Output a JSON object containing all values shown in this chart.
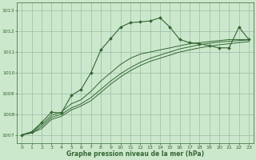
{
  "bg_color": "#cce8cc",
  "grid_color": "#99bbaa",
  "line_color": "#336633",
  "title": "Graphe pression niveau de la mer (hPa)",
  "xlim": [
    -0.5,
    23.5
  ],
  "ylim": [
    1006.6,
    1013.4
  ],
  "yticks": [
    1007,
    1008,
    1009,
    1010,
    1011,
    1012,
    1013
  ],
  "xticks": [
    0,
    1,
    2,
    3,
    4,
    5,
    6,
    7,
    8,
    9,
    10,
    11,
    12,
    13,
    14,
    15,
    16,
    17,
    18,
    19,
    20,
    21,
    22,
    23
  ],
  "line1_x": [
    0,
    1,
    2,
    3,
    4,
    5,
    6,
    7,
    8,
    9,
    10,
    11,
    12,
    13,
    14,
    15,
    16,
    17,
    18,
    19,
    20,
    21,
    22,
    23
  ],
  "line1_y": [
    1007.0,
    1007.15,
    1007.6,
    1008.1,
    1008.05,
    1008.9,
    1009.2,
    1010.0,
    1011.1,
    1011.65,
    1012.2,
    1012.42,
    1012.45,
    1012.5,
    1012.65,
    1012.2,
    1011.6,
    1011.45,
    1011.4,
    1011.3,
    1011.2,
    1011.2,
    1012.2,
    1011.6
  ],
  "line2_x": [
    0,
    1,
    2,
    3,
    4,
    5,
    6,
    7,
    8,
    9,
    10,
    11,
    12,
    13,
    14,
    15,
    16,
    17,
    18,
    19,
    20,
    21,
    22,
    23
  ],
  "line2_y": [
    1007.0,
    1007.15,
    1007.5,
    1007.95,
    1008.1,
    1008.5,
    1008.7,
    1009.1,
    1009.6,
    1010.0,
    1010.4,
    1010.7,
    1010.9,
    1011.0,
    1011.1,
    1011.2,
    1011.3,
    1011.4,
    1011.45,
    1011.5,
    1011.55,
    1011.6,
    1011.6,
    1011.6
  ],
  "line3_x": [
    0,
    1,
    2,
    3,
    4,
    5,
    6,
    7,
    8,
    9,
    10,
    11,
    12,
    13,
    14,
    15,
    16,
    17,
    18,
    19,
    20,
    21,
    22,
    23
  ],
  "line3_y": [
    1007.0,
    1007.1,
    1007.4,
    1007.85,
    1008.0,
    1008.3,
    1008.5,
    1008.8,
    1009.2,
    1009.6,
    1009.95,
    1010.25,
    1010.5,
    1010.7,
    1010.85,
    1011.0,
    1011.15,
    1011.25,
    1011.35,
    1011.42,
    1011.48,
    1011.52,
    1011.55,
    1011.58
  ],
  "line4_x": [
    0,
    1,
    2,
    3,
    4,
    5,
    6,
    7,
    8,
    9,
    10,
    11,
    12,
    13,
    14,
    15,
    16,
    17,
    18,
    19,
    20,
    21,
    22,
    23
  ],
  "line4_y": [
    1007.0,
    1007.1,
    1007.3,
    1007.75,
    1007.9,
    1008.2,
    1008.4,
    1008.65,
    1009.05,
    1009.45,
    1009.8,
    1010.1,
    1010.35,
    1010.55,
    1010.7,
    1010.85,
    1011.0,
    1011.1,
    1011.2,
    1011.28,
    1011.35,
    1011.4,
    1011.45,
    1011.5
  ]
}
